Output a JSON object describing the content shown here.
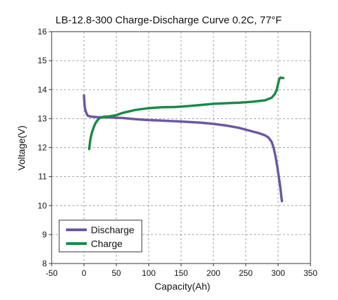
{
  "chart_data": {
    "type": "line",
    "title": "LB-12.8-300 Charge-Discharge Curve 0.2C, 77°F",
    "xlabel": "Capacity(Ah)",
    "ylabel": "Voltage(V)",
    "xlim": [
      -50,
      350
    ],
    "ylim": [
      8,
      16
    ],
    "xticks": [
      -50,
      0,
      50,
      100,
      150,
      200,
      250,
      300,
      350
    ],
    "yticks": [
      8,
      9,
      10,
      11,
      12,
      13,
      14,
      15,
      16
    ],
    "grid": true,
    "legend_position": "bottom-left",
    "series": [
      {
        "name": "Discharge",
        "color": "#6b57a4",
        "x": [
          0,
          1,
          2,
          4,
          6,
          10,
          20,
          40,
          60,
          80,
          100,
          120,
          150,
          180,
          200,
          220,
          240,
          260,
          270,
          280,
          285,
          290,
          293,
          296,
          299,
          301,
          303,
          304,
          305,
          306
        ],
        "y": [
          13.8,
          13.45,
          13.3,
          13.17,
          13.1,
          13.07,
          13.05,
          13.04,
          13.02,
          12.98,
          12.95,
          12.93,
          12.9,
          12.86,
          12.82,
          12.76,
          12.68,
          12.56,
          12.5,
          12.42,
          12.35,
          12.2,
          12.0,
          11.7,
          11.3,
          11.0,
          10.7,
          10.5,
          10.3,
          10.15
        ]
      },
      {
        "name": "Charge",
        "color": "#1a8a4a",
        "x": [
          8,
          10,
          12,
          15,
          18,
          22,
          26,
          30,
          40,
          50,
          60,
          80,
          100,
          120,
          140,
          160,
          180,
          200,
          220,
          240,
          260,
          280,
          290,
          295,
          298,
          300,
          302,
          304,
          306,
          308
        ],
        "y": [
          11.95,
          12.3,
          12.5,
          12.7,
          12.85,
          12.98,
          13.04,
          13.06,
          13.08,
          13.12,
          13.2,
          13.3,
          13.36,
          13.39,
          13.4,
          13.43,
          13.47,
          13.51,
          13.53,
          13.55,
          13.58,
          13.63,
          13.72,
          13.85,
          14.0,
          14.2,
          14.38,
          14.42,
          14.4,
          14.4
        ]
      }
    ]
  }
}
